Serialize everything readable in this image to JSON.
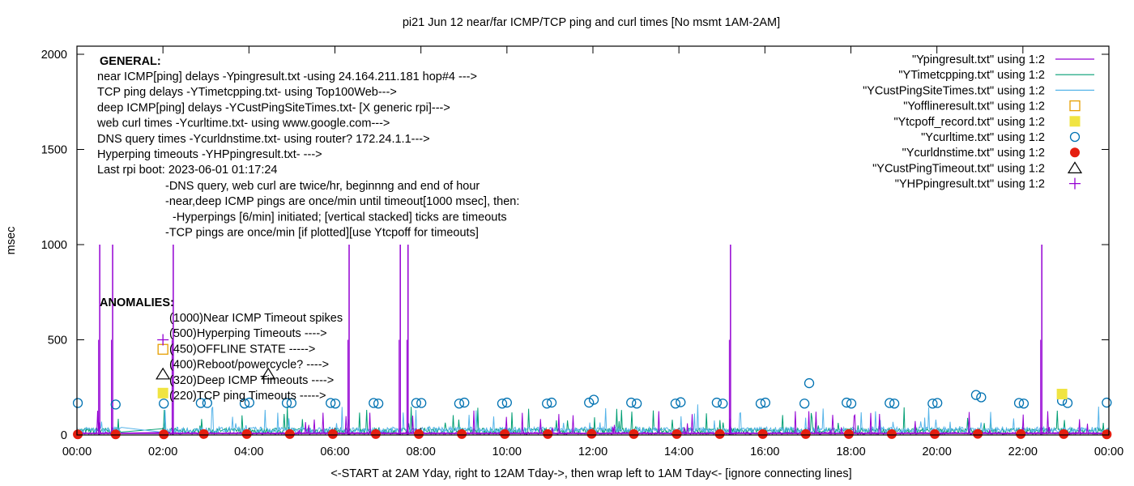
{
  "chart_data": {
    "type": "line",
    "title": "pi21 Jun 12  near/far ICMP/TCP ping and curl times [No msmt 1AM-2AM]",
    "xlabel": "<-START at 2AM Yday, right to 12AM Tday->, then wrap left to 1AM Tday<- [ignore connecting lines]",
    "ylabel": "msec",
    "xlim_hours": [
      0,
      24
    ],
    "ylim": [
      0,
      2000
    ],
    "x_ticks": [
      "00:00",
      "02:00",
      "04:00",
      "06:00",
      "08:00",
      "10:00",
      "12:00",
      "14:00",
      "16:00",
      "18:00",
      "20:00",
      "22:00",
      "00:00"
    ],
    "y_ticks": [
      0,
      500,
      1000,
      1500,
      2000
    ],
    "legend_position": "top-right",
    "legend": [
      {
        "label": "\"Ypingresult.txt\" using 1:2",
        "style": "line",
        "color": "#9400d3"
      },
      {
        "label": "\"YTimetcpping.txt\" using 1:2",
        "style": "line",
        "color": "#009e73"
      },
      {
        "label": "\"YCustPingSiteTimes.txt\" using 1:2",
        "style": "line",
        "color": "#56b4e9"
      },
      {
        "label": "\"Yofflineresult.txt\" using 1:2",
        "style": "open-square",
        "color": "#e69f00"
      },
      {
        "label": "\"Ytcpoff_record.txt\" using 1:2",
        "style": "filled-square",
        "color": "#f0e442"
      },
      {
        "label": "\"Ycurltime.txt\" using 1:2",
        "style": "open-circle",
        "color": "#0072b2"
      },
      {
        "label": "\"Ycurldnstime.txt\" using 1:2",
        "style": "filled-circle",
        "color": "#e51e10"
      },
      {
        "label": "\"YCustPingTimeout.txt\" using 1:2",
        "style": "open-triangle",
        "color": "#000000"
      },
      {
        "label": "\"YHPpingresult.txt\" using 1:2",
        "style": "plus",
        "color": "#9400d3"
      }
    ],
    "series": {
      "Ypingresult": {
        "typical_ms": 12,
        "timeout_spikes_hours": [
          0.53,
          0.83,
          2.24,
          6.33,
          7.52,
          7.7,
          15.2,
          22.44
        ],
        "spike_ms": 1000
      },
      "YTimetcpping": {
        "typical_ms": 30
      },
      "YCustPingSiteTimes": {
        "typical_ms": 35
      },
      "Ycurltime": {
        "x_hours": [
          0.02,
          0.9,
          2.02,
          2.88,
          3.03,
          3.9,
          4.01,
          4.88,
          4.99,
          5.9,
          6.01,
          6.9,
          7.01,
          7.89,
          8.01,
          8.89,
          9.01,
          9.89,
          10.0,
          10.93,
          11.04,
          11.91,
          12.02,
          12.89,
          13.02,
          13.92,
          14.04,
          14.88,
          15.02,
          15.9,
          16.01,
          16.92,
          17.03,
          17.9,
          18.01,
          18.9,
          19.01,
          19.9,
          20.01,
          20.91,
          21.03,
          21.91,
          22.02,
          22.91,
          23.04,
          23.95
        ],
        "values": [
          168,
          160,
          165,
          168,
          168,
          165,
          170,
          168,
          168,
          168,
          165,
          168,
          165,
          168,
          168,
          165,
          170,
          165,
          170,
          165,
          170,
          170,
          185,
          170,
          165,
          165,
          172,
          170,
          165,
          165,
          170,
          165,
          272,
          170,
          165,
          168,
          165,
          165,
          168,
          210,
          198,
          168,
          165,
          180,
          168,
          170
        ]
      },
      "Ycurldnstime": {
        "x_hours": [
          0.02,
          0.9,
          2.02,
          2.95,
          3.95,
          4.95,
          5.95,
          6.95,
          7.95,
          8.95,
          9.95,
          10.95,
          11.97,
          12.95,
          13.95,
          14.95,
          15.95,
          16.95,
          17.95,
          18.95,
          19.95,
          20.95,
          21.95,
          22.95,
          23.95
        ],
        "values": [
          3,
          3,
          3,
          5,
          5,
          5,
          5,
          5,
          5,
          5,
          5,
          5,
          6,
          5,
          5,
          5,
          5,
          5,
          5,
          5,
          5,
          6,
          5,
          5,
          3
        ]
      },
      "Yofflineresult": {
        "x_hours": [
          2.0
        ],
        "values": [
          450
        ]
      },
      "Ytcpoff_record": {
        "x_hours": [
          2.0,
          22.91
        ],
        "values": [
          220,
          215
        ]
      },
      "YCustPingTimeout": {
        "x_hours": [
          2.0,
          4.45
        ],
        "values": [
          320,
          320
        ]
      },
      "YHPpingresult": {
        "x_hours": [
          2.0
        ],
        "values": [
          500
        ]
      }
    },
    "general_notes": {
      "heading": "GENERAL:",
      "lines": [
        "near ICMP[ping] delays -Ypingresult.txt -using 24.164.211.181 hop#4 --->",
        "TCP ping delays -YTimetcpping.txt- using Top100Web--->",
        "deep ICMP[ping] delays -YCustPingSiteTimes.txt- [X generic rpi]--->",
        "web curl times -Ycurltime.txt- using www.google.com--->",
        "DNS query times -Ycurldnstime.txt- using router? 172.24.1.1--->",
        "Hyperping timeouts -YHPpingresult.txt- --->",
        "Last rpi boot: 2023-06-01 01:17:24"
      ],
      "indented": [
        "-DNS query, web curl are twice/hr, beginnng and end of hour",
        "-near,deep ICMP pings are once/min until timeout[1000 msec], then:",
        "-Hyperpings [6/min] initiated; [vertical stacked] ticks are timeouts",
        "-TCP pings are once/min [if plotted][use Ytcpoff for timeouts]"
      ]
    },
    "anomalies": {
      "heading": "ANOMALIES:",
      "lines": [
        "(1000)Near ICMP Timeout spikes",
        "(500)Hyperping Timeouts ---->",
        "(450)OFFLINE STATE ----->",
        "(400)Reboot/powercycle? ---->",
        "(320)Deep ICMP Timeouts ---->",
        "(220)TCP ping Timeouts ----->"
      ]
    }
  }
}
